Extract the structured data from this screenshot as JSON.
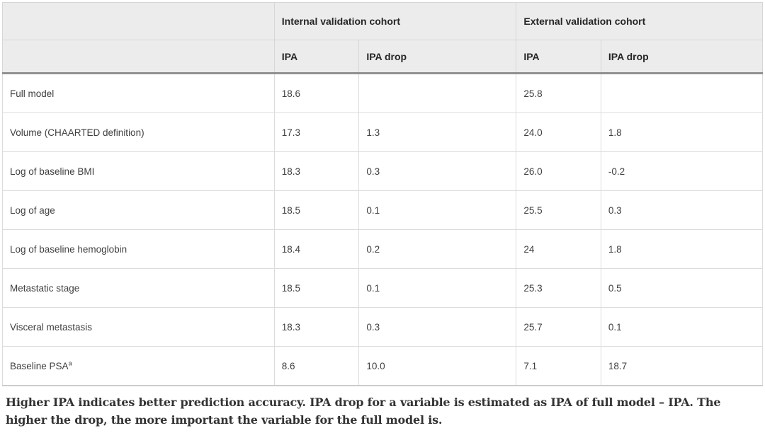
{
  "table": {
    "header_groups": [
      {
        "label": "",
        "span": 1
      },
      {
        "label": "Internal validation cohort",
        "span": 2
      },
      {
        "label": "External validation cohort",
        "span": 2
      }
    ],
    "sub_headers": [
      "",
      "IPA",
      "IPA drop",
      "IPA",
      "IPA drop"
    ],
    "rows": [
      {
        "label": "Full model",
        "values": [
          "18.6",
          "",
          "25.8",
          ""
        ]
      },
      {
        "label": "Volume (CHAARTED definition)",
        "values": [
          "17.3",
          "1.3",
          "24.0",
          "1.8"
        ]
      },
      {
        "label": "Log of baseline BMI",
        "values": [
          "18.3",
          "0.3",
          "26.0",
          "-0.2"
        ]
      },
      {
        "label": "Log of age",
        "values": [
          "18.5",
          "0.1",
          "25.5",
          "0.3"
        ]
      },
      {
        "label": "Log of baseline hemoglobin",
        "values": [
          "18.4",
          "0.2",
          "24",
          "1.8"
        ]
      },
      {
        "label": "Metastatic stage",
        "values": [
          "18.5",
          "0.1",
          "25.3",
          "0.5"
        ]
      },
      {
        "label": "Visceral metastasis",
        "values": [
          "18.3",
          "0.3",
          "25.7",
          "0.1"
        ]
      },
      {
        "label": "Baseline PSA",
        "sup": "a",
        "values": [
          "8.6",
          "10.0",
          "7.1",
          "18.7"
        ]
      }
    ],
    "footnote": "Higher IPA indicates better prediction accuracy. IPA drop for a variable is estimated as IPA of full model – IPA. The higher the drop, the more important the variable for the full model is.",
    "colors": {
      "header_background": "#ececec",
      "cell_border": "#dcdcdc",
      "header_rule": "#919191",
      "body_text": "#3f3f3f",
      "header_text": "#262626",
      "footnote_text": "#333333"
    }
  }
}
